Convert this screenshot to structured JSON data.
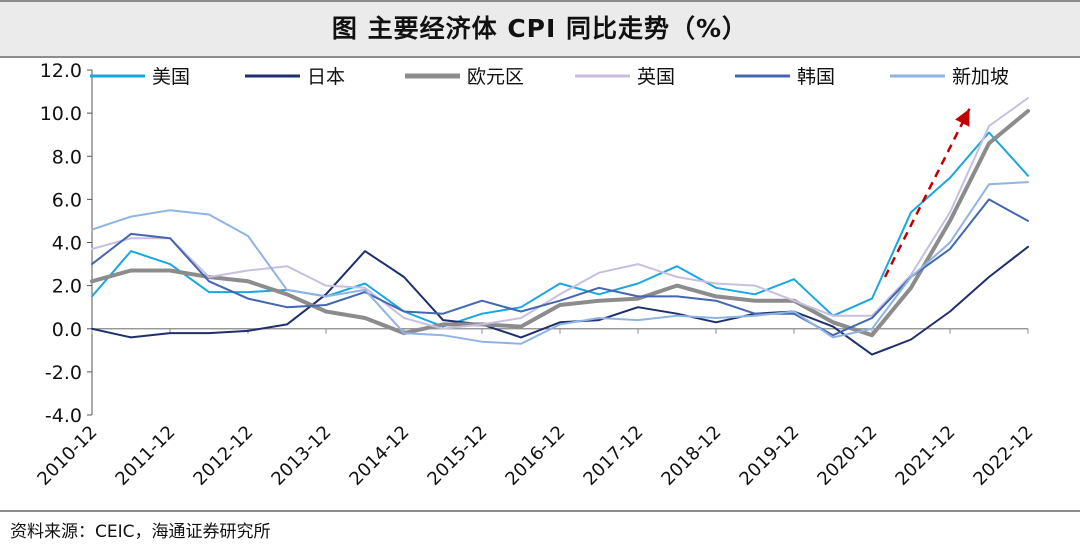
{
  "title": "图 主要经济体 CPI 同比走势（%）",
  "source": "资料来源：CEIC，海通证券研究所",
  "chart_data": {
    "type": "line",
    "title": "图 主要经济体 CPI 同比走势（%）",
    "ylim": [
      -4.0,
      12.0
    ],
    "y_ticks": [
      "12.0",
      "10.0",
      "8.0",
      "6.0",
      "4.0",
      "2.0",
      "0.0",
      "-2.0",
      "-4.0"
    ],
    "x_ticks": [
      "2010-12",
      "2011-12",
      "2012-12",
      "2013-12",
      "2014-12",
      "2015-12",
      "2016-12",
      "2017-12",
      "2018-12",
      "2019-12",
      "2020-12",
      "2021-12",
      "2022-12"
    ],
    "x_range": [
      "2010-12",
      "2022-12"
    ],
    "legend": "top",
    "grid": false,
    "annotation": "red dashed arrow rising from 2020-12 to late 2022",
    "x": [
      "2010-12",
      "2011-06",
      "2011-12",
      "2012-06",
      "2012-12",
      "2013-06",
      "2013-12",
      "2014-06",
      "2014-12",
      "2015-06",
      "2015-12",
      "2016-06",
      "2016-12",
      "2017-06",
      "2017-12",
      "2018-06",
      "2018-12",
      "2019-06",
      "2019-12",
      "2020-06",
      "2020-12",
      "2021-06",
      "2021-12",
      "2022-06",
      "2022-12"
    ],
    "series": [
      {
        "name": "美国",
        "color": "#1aa7e0",
        "width": 2,
        "values": [
          1.5,
          3.6,
          3.0,
          1.7,
          1.7,
          1.8,
          1.5,
          2.1,
          0.8,
          0.1,
          0.7,
          1.0,
          2.1,
          1.6,
          2.1,
          2.9,
          1.9,
          1.6,
          2.3,
          0.6,
          1.4,
          5.4,
          7.0,
          9.1,
          7.1
        ]
      },
      {
        "name": "日本",
        "color": "#1f2f6e",
        "width": 2,
        "values": [
          0.0,
          -0.4,
          -0.2,
          -0.2,
          -0.1,
          0.2,
          1.6,
          3.6,
          2.4,
          0.4,
          0.2,
          -0.4,
          0.3,
          0.4,
          1.0,
          0.7,
          0.3,
          0.7,
          0.8,
          0.1,
          -1.2,
          -0.5,
          0.8,
          2.4,
          3.8
        ]
      },
      {
        "name": "欧元区",
        "color": "#8c8c8c",
        "width": 4,
        "values": [
          2.2,
          2.7,
          2.7,
          2.4,
          2.2,
          1.6,
          0.8,
          0.5,
          -0.2,
          0.2,
          0.2,
          0.1,
          1.1,
          1.3,
          1.4,
          2.0,
          1.5,
          1.3,
          1.3,
          0.3,
          -0.3,
          1.9,
          5.0,
          8.6,
          10.1
        ]
      },
      {
        "name": "英国",
        "color": "#c8bfe0",
        "width": 2,
        "values": [
          3.7,
          4.2,
          4.2,
          2.4,
          2.7,
          2.9,
          2.0,
          1.9,
          0.5,
          0.0,
          0.2,
          0.5,
          1.6,
          2.6,
          3.0,
          2.4,
          2.1,
          2.0,
          1.3,
          0.6,
          0.6,
          2.5,
          5.4,
          9.4,
          10.7
        ]
      },
      {
        "name": "韩国",
        "color": "#4466b0",
        "width": 2,
        "values": [
          3.0,
          4.4,
          4.2,
          2.2,
          1.4,
          1.0,
          1.1,
          1.7,
          0.8,
          0.7,
          1.3,
          0.8,
          1.3,
          1.9,
          1.5,
          1.5,
          1.3,
          0.7,
          0.7,
          -0.3,
          0.5,
          2.4,
          3.7,
          6.0,
          5.0
        ]
      },
      {
        "name": "新加坡",
        "color": "#8fb4e3",
        "width": 2,
        "values": [
          4.6,
          5.2,
          5.5,
          5.3,
          4.3,
          1.8,
          1.5,
          1.8,
          -0.2,
          -0.3,
          -0.6,
          -0.7,
          0.2,
          0.5,
          0.4,
          0.6,
          0.5,
          0.6,
          0.8,
          -0.4,
          0.0,
          2.4,
          4.0,
          6.7,
          6.8
        ]
      }
    ]
  }
}
